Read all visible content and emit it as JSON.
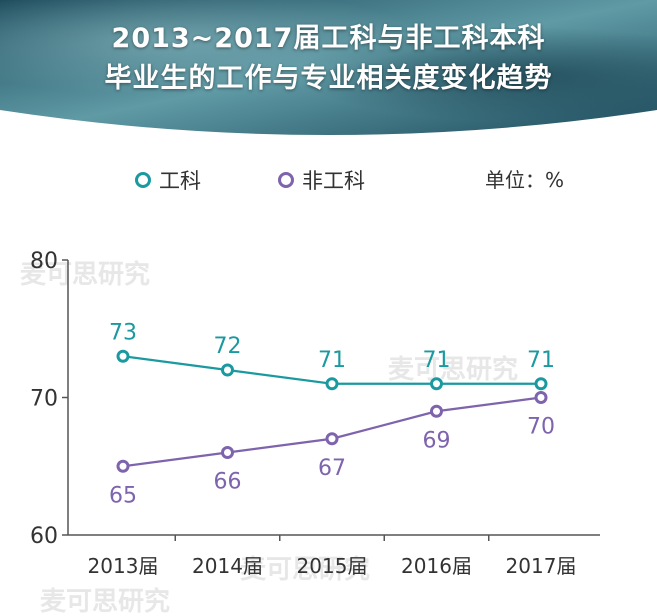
{
  "title": {
    "line1": "2013~2017届工科与非工科本科",
    "line2": "毕业生的工作与专业相关度变化趋势"
  },
  "unit_label": "单位：%",
  "watermark": "麦可思研究",
  "colors": {
    "banner_dark": "#1d4b5c",
    "banner_light": "#5f9aa5",
    "series_engineering": "#1a9aa0",
    "series_non_engineering": "#7e63ad",
    "axis": "#555555"
  },
  "chart_data": {
    "type": "line",
    "categories": [
      "2013届",
      "2014届",
      "2015届",
      "2016届",
      "2017届"
    ],
    "series": [
      {
        "name": "工科",
        "values": [
          73,
          72,
          71,
          71,
          71
        ]
      },
      {
        "name": "非工科",
        "values": [
          65,
          66,
          67,
          69,
          70
        ]
      }
    ],
    "yticks": [
      60,
      70,
      80
    ],
    "ylim": [
      60,
      80
    ],
    "grid": false,
    "legend_position": "top-left"
  }
}
